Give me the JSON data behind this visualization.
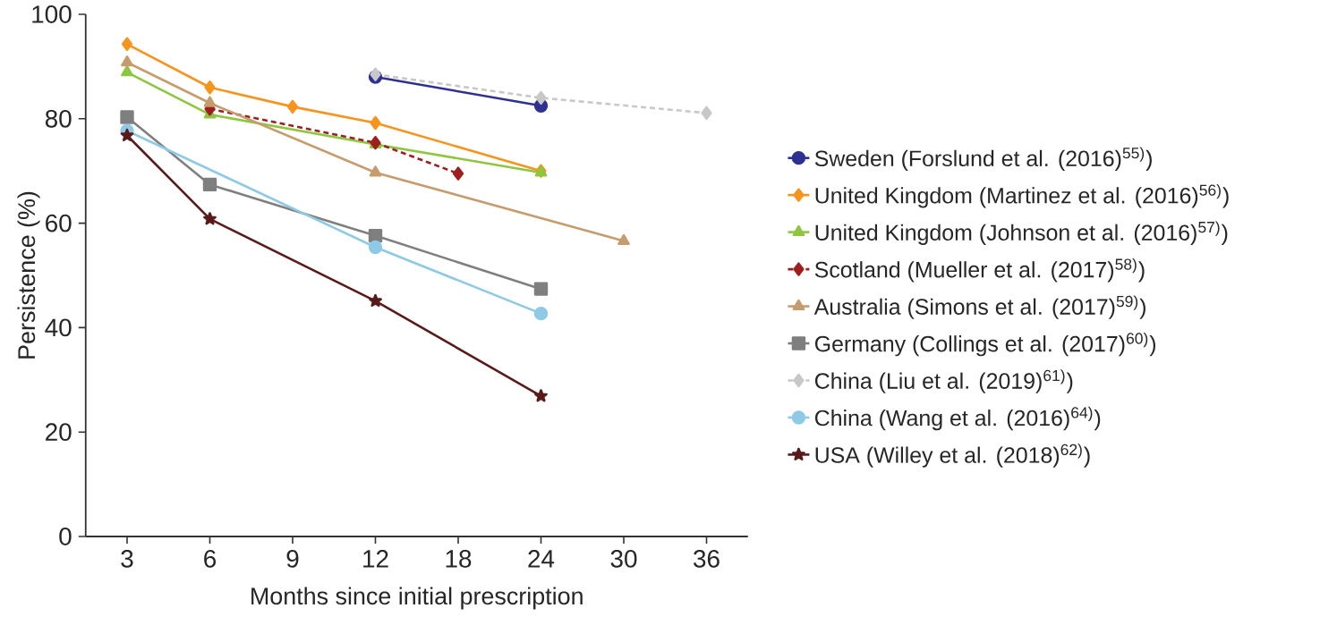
{
  "chart_data": {
    "type": "line",
    "xlabel": "Months since initial prescription",
    "ylabel": "Persistence (%)",
    "categories": [
      "3",
      "6",
      "9",
      "12",
      "18",
      "24",
      "30",
      "36"
    ],
    "ylim": [
      0,
      100
    ],
    "yticks": [
      0,
      20,
      40,
      60,
      80,
      100
    ],
    "grid": false,
    "legend": "right",
    "series": [
      {
        "name": "Sweden (Forslund et al. (2016)$^{55)}$)",
        "color": "#2e3192",
        "marker": "circle",
        "line_style": "solid",
        "values": [
          null,
          null,
          null,
          88.0,
          null,
          82.5,
          null,
          null
        ]
      },
      {
        "name": "United Kingdom (Martinez et al. (2016)$^{56)}$)",
        "color": "#f7941d",
        "marker": "diamond",
        "line_style": "solid",
        "values": [
          94.3,
          86.0,
          82.3,
          79.2,
          null,
          70.0,
          null,
          null
        ]
      },
      {
        "name": "United Kingdom (Johnson et al. (2016)$^{57)}$)",
        "color": "#8dc63f",
        "marker": "triangle",
        "line_style": "solid",
        "values": [
          88.9,
          80.8,
          null,
          75.1,
          null,
          69.7,
          null,
          null
        ]
      },
      {
        "name": "Scotland (Mueller et al. (2017)$^{58)}$)",
        "color": "#9e1f1f",
        "marker": "diamond",
        "line_style": "dashed",
        "values": [
          null,
          81.9,
          null,
          75.4,
          69.5,
          null,
          null,
          null
        ]
      },
      {
        "name": "Australia (Simons et al. (2017)$^{59)}$)",
        "color": "#c69c6d",
        "marker": "triangle",
        "line_style": "solid",
        "values": [
          90.8,
          83.0,
          null,
          69.7,
          null,
          null,
          56.6,
          null
        ]
      },
      {
        "name": "Germany (Collings et al. (2017)$^{60)}$)",
        "color": "#7f7f7f",
        "marker": "square",
        "line_style": "solid",
        "values": [
          80.3,
          67.4,
          null,
          57.6,
          null,
          47.4,
          null,
          null
        ]
      },
      {
        "name": "China (Liu et al. (2019)$^{61)}$)",
        "color": "#c8c8c8",
        "marker": "diamond",
        "line_style": "dashed",
        "values": [
          null,
          null,
          null,
          88.5,
          null,
          84.0,
          null,
          81.1
        ]
      },
      {
        "name": "China (Wang et al. (2016)$^{64)}$)",
        "color": "#8ecae6",
        "marker": "circle",
        "line_style": "solid",
        "values": [
          77.7,
          null,
          null,
          55.4,
          null,
          42.7,
          null,
          null
        ]
      },
      {
        "name": "USA (Willey et al. (2018)$^{62)}$)",
        "color": "#5a1a1a",
        "marker": "star",
        "line_style": "solid",
        "values": [
          76.8,
          60.8,
          null,
          45.1,
          null,
          26.9,
          null,
          null
        ]
      }
    ]
  }
}
